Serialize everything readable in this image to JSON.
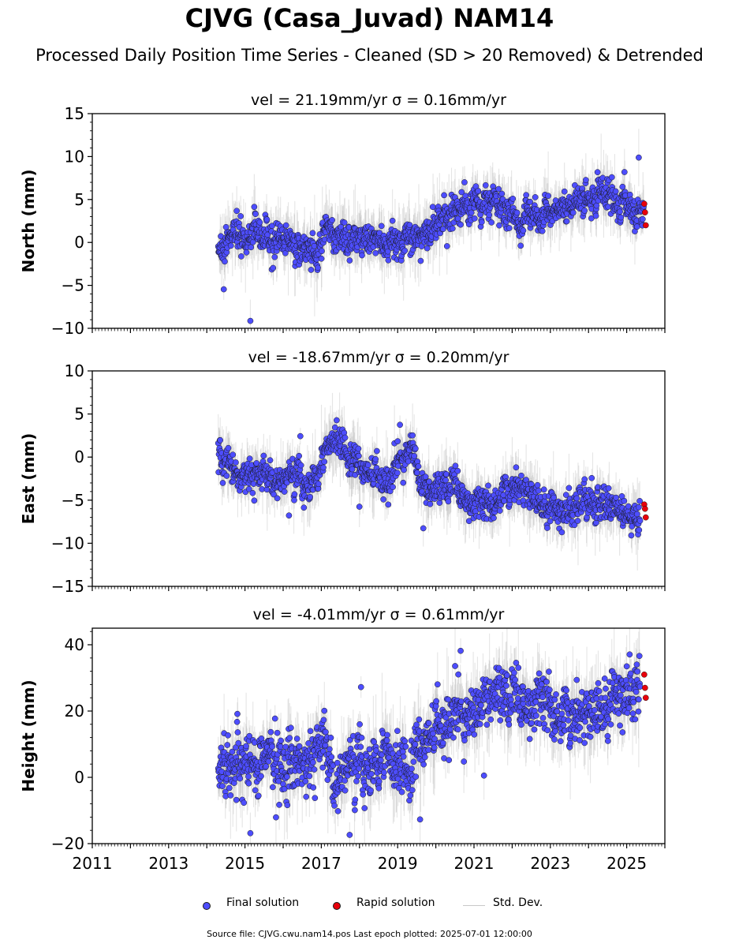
{
  "title": "CJVG (Casa_Juvad) NAM14",
  "subtitle": "Processed Daily Position Time Series - Cleaned (SD > 20 Removed) & Detrended",
  "legend": {
    "final": "Final solution",
    "rapid": "Rapid solution",
    "std": "Std. Dev."
  },
  "colors": {
    "final": "#4d4dff",
    "rapid": "#e8000b",
    "std": "#b4b4b4",
    "marker_edge": "#1a1a1a"
  },
  "footer": "Source file: CJVG.cwu.nam14.pos  Last epoch plotted: 2025-07-01 12:00:00",
  "chart_data": [
    {
      "type": "scatter",
      "title": "vel = 21.19mm/yr   σ = 0.16mm/yr",
      "ylabel": "North (mm)",
      "xlabel": "",
      "xlim": [
        2011.0,
        2026.0
      ],
      "ylim": [
        -10,
        15
      ],
      "yticks": [
        -10,
        -5,
        0,
        5,
        10,
        15
      ],
      "ytick_labels": [
        "−10",
        "−5",
        "0",
        "5",
        "10",
        "15"
      ],
      "xticks": [
        2011,
        2013,
        2015,
        2017,
        2019,
        2021,
        2023,
        2025
      ],
      "xtick_labels": [
        "2011",
        "2013",
        "2015",
        "2017",
        "2019",
        "2021",
        "2023",
        "2025"
      ],
      "legend": "bottom-center",
      "grid": false,
      "series": [
        {
          "name": "Final solution",
          "x": [
            2014.3,
            2014.5,
            2014.8,
            2015.0,
            2015.2,
            2015.5,
            2015.8,
            2016.0,
            2016.3,
            2016.6,
            2016.9,
            2017.1,
            2017.4,
            2017.7,
            2018.0,
            2018.3,
            2018.6,
            2018.9,
            2019.2,
            2019.5,
            2019.8,
            2020.1,
            2020.4,
            2020.7,
            2021.0,
            2021.3,
            2021.6,
            2021.9,
            2022.2,
            2022.5,
            2022.8,
            2023.1,
            2023.4,
            2023.7,
            2024.0,
            2024.3,
            2024.6,
            2024.9,
            2025.2,
            2025.4
          ],
          "y": [
            -1.0,
            0.5,
            1.0,
            0.2,
            1.5,
            1.0,
            0.0,
            0.5,
            0.0,
            -1.0,
            -1.5,
            1.0,
            1.0,
            0.5,
            0.0,
            0.5,
            -0.5,
            0.0,
            0.0,
            0.5,
            1.5,
            2.5,
            3.5,
            4.0,
            4.0,
            4.5,
            4.0,
            3.5,
            3.0,
            3.5,
            3.0,
            4.5,
            4.0,
            5.0,
            5.0,
            5.5,
            5.0,
            4.5,
            4.0,
            3.5
          ]
        },
        {
          "name": "Rapid solution",
          "x": [
            2025.46,
            2025.48,
            2025.5
          ],
          "y": [
            4.5,
            3.5,
            2.0
          ]
        }
      ]
    },
    {
      "type": "scatter",
      "title": "vel = -18.67mm/yr   σ = 0.20mm/yr",
      "ylabel": "East (mm)",
      "xlabel": "",
      "xlim": [
        2011.0,
        2026.0
      ],
      "ylim": [
        -15,
        10
      ],
      "yticks": [
        -15,
        -10,
        -5,
        0,
        5,
        10
      ],
      "ytick_labels": [
        "−15",
        "−10",
        "−5",
        "0",
        "5",
        "10"
      ],
      "xticks": [
        2011,
        2013,
        2015,
        2017,
        2019,
        2021,
        2023,
        2025
      ],
      "xtick_labels": [
        "2011",
        "2013",
        "2015",
        "2017",
        "2019",
        "2021",
        "2023",
        "2025"
      ],
      "legend": "bottom-center",
      "grid": false,
      "series": [
        {
          "name": "Final solution",
          "x": [
            2014.3,
            2014.5,
            2014.8,
            2015.0,
            2015.2,
            2015.5,
            2015.8,
            2016.0,
            2016.3,
            2016.6,
            2016.9,
            2017.1,
            2017.3,
            2017.6,
            2017.9,
            2018.2,
            2018.5,
            2018.8,
            2019.0,
            2019.2,
            2019.4,
            2019.6,
            2019.9,
            2020.2,
            2020.5,
            2020.8,
            2021.1,
            2021.4,
            2021.7,
            2022.0,
            2022.3,
            2022.6,
            2022.9,
            2023.2,
            2023.5,
            2023.8,
            2024.1,
            2024.4,
            2024.7,
            2025.0,
            2025.3
          ],
          "y": [
            0.5,
            -1.0,
            -2.0,
            -1.5,
            -2.0,
            -2.5,
            -2.0,
            -3.0,
            -2.0,
            -3.0,
            -2.5,
            0.0,
            2.5,
            1.0,
            -1.0,
            -2.0,
            -2.5,
            -3.0,
            -1.0,
            0.5,
            1.5,
            -3.5,
            -4.5,
            -4.0,
            -3.0,
            -5.0,
            -5.5,
            -5.0,
            -4.5,
            -4.0,
            -3.5,
            -5.0,
            -6.0,
            -6.5,
            -6.0,
            -5.5,
            -5.0,
            -5.5,
            -6.0,
            -6.5,
            -7.0
          ]
        },
        {
          "name": "Rapid solution",
          "x": [
            2025.46,
            2025.48,
            2025.5
          ],
          "y": [
            -5.5,
            -6.0,
            -7.0
          ]
        }
      ]
    },
    {
      "type": "scatter",
      "title": "vel = -4.01mm/yr   σ = 0.61mm/yr",
      "ylabel": "Height (mm)",
      "xlabel": "",
      "xlim": [
        2011.0,
        2026.0
      ],
      "ylim": [
        -20,
        45
      ],
      "yticks": [
        -20,
        0,
        20,
        40
      ],
      "ytick_labels": [
        "−20",
        "0",
        "20",
        "40"
      ],
      "xticks": [
        2011,
        2013,
        2015,
        2017,
        2019,
        2021,
        2023,
        2025
      ],
      "xtick_labels": [
        "2011",
        "2013",
        "2015",
        "2017",
        "2019",
        "2021",
        "2023",
        "2025"
      ],
      "legend": "bottom-center",
      "grid": false,
      "series": [
        {
          "name": "Final solution",
          "x": [
            2014.3,
            2014.5,
            2014.8,
            2015.0,
            2015.3,
            2015.6,
            2015.9,
            2016.2,
            2016.5,
            2016.8,
            2017.0,
            2017.3,
            2017.6,
            2017.9,
            2018.2,
            2018.5,
            2018.8,
            2019.1,
            2019.4,
            2019.7,
            2020.0,
            2020.3,
            2020.6,
            2020.9,
            2021.2,
            2021.5,
            2021.8,
            2022.1,
            2022.4,
            2022.7,
            2023.0,
            2023.3,
            2023.6,
            2023.9,
            2024.2,
            2024.5,
            2024.8,
            2025.1,
            2025.3
          ],
          "y": [
            3,
            2,
            4,
            5,
            3,
            6,
            2,
            3,
            5,
            7,
            10,
            2,
            1,
            4,
            5,
            3,
            6,
            2,
            4,
            10,
            13,
            17,
            18,
            20,
            21,
            23,
            22,
            25,
            22,
            23,
            24,
            18,
            16,
            20,
            19,
            21,
            24,
            26,
            28
          ]
        },
        {
          "name": "Rapid solution",
          "x": [
            2025.46,
            2025.48,
            2025.5
          ],
          "y": [
            31,
            27,
            24
          ]
        }
      ]
    }
  ]
}
